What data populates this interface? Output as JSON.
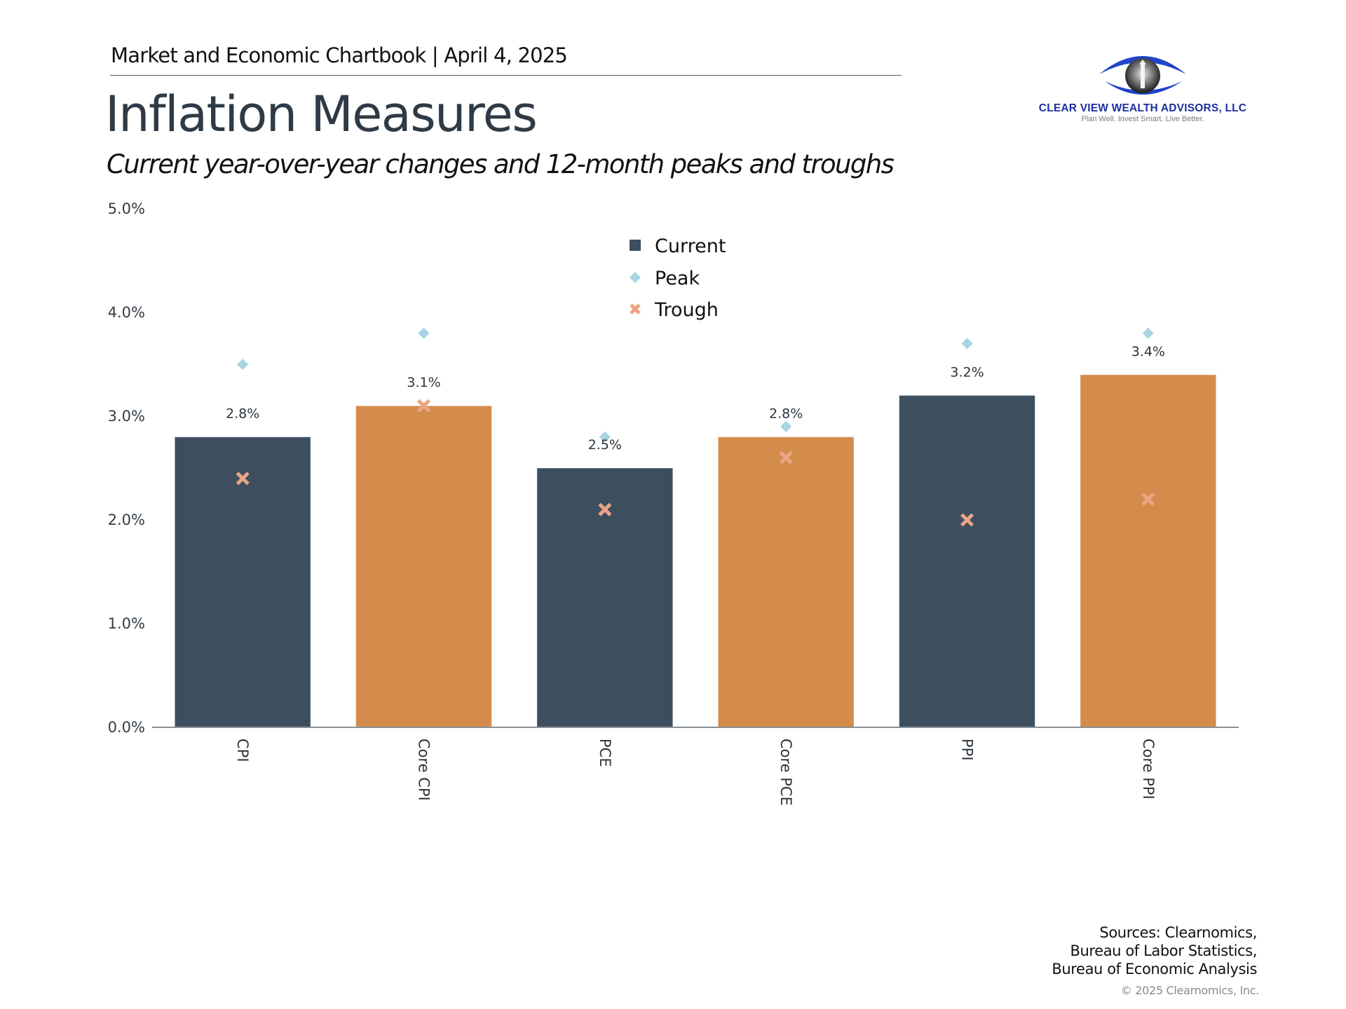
{
  "header": {
    "chartbook_line": "Market and Economic Chartbook | April 4, 2025",
    "title": "Inflation Measures",
    "subtitle": "Current year-over-year changes and 12-month peaks and troughs"
  },
  "logo": {
    "name": "CLEAR VIEW WEALTH ADVISORS, LLC",
    "tagline": "Plan Well. Invest Smart. Live Better.",
    "icon": "eye-lighthouse-icon",
    "color": "#1c2f9e"
  },
  "footer": {
    "sources": [
      "Sources: Clearnomics,",
      "Bureau of Labor Statistics,",
      "Bureau of Economic Analysis"
    ],
    "copyright": "© 2025 Clearnomics, Inc."
  },
  "chart_data": {
    "type": "bar",
    "title": "Inflation Measures",
    "subtitle": "Current year-over-year changes and 12-month peaks and troughs",
    "xlabel": "",
    "ylabel": "",
    "ylim": [
      0,
      5
    ],
    "yticks": [
      0,
      1,
      2,
      3,
      4,
      5
    ],
    "ytick_labels": [
      "0.0%",
      "1.0%",
      "2.0%",
      "3.0%",
      "4.0%",
      "5.0%"
    ],
    "grid": false,
    "legend_position": "top-center",
    "categories": [
      "CPI",
      "Core CPI",
      "PCE",
      "Core PCE",
      "PPI",
      "Core PPI"
    ],
    "series": [
      {
        "name": "Current",
        "marker": "bar",
        "colors": [
          "#3d4f5e",
          "#d48c4c",
          "#3d4f5e",
          "#d48c4c",
          "#3d4f5e",
          "#d48c4c"
        ],
        "legend_color": "#3d4f5e",
        "values": [
          2.8,
          3.1,
          2.5,
          2.8,
          3.2,
          3.4
        ],
        "data_labels": [
          "2.8%",
          "3.1%",
          "2.5%",
          "2.8%",
          "3.2%",
          "3.4%"
        ]
      },
      {
        "name": "Peak",
        "marker": "diamond",
        "color": "#a8d4e4",
        "values": [
          3.5,
          3.8,
          2.8,
          2.9,
          3.7,
          3.8
        ]
      },
      {
        "name": "Trough",
        "marker": "x",
        "color": "#eba484",
        "values": [
          2.4,
          3.1,
          2.1,
          2.6,
          2.0,
          2.2
        ]
      }
    ]
  }
}
